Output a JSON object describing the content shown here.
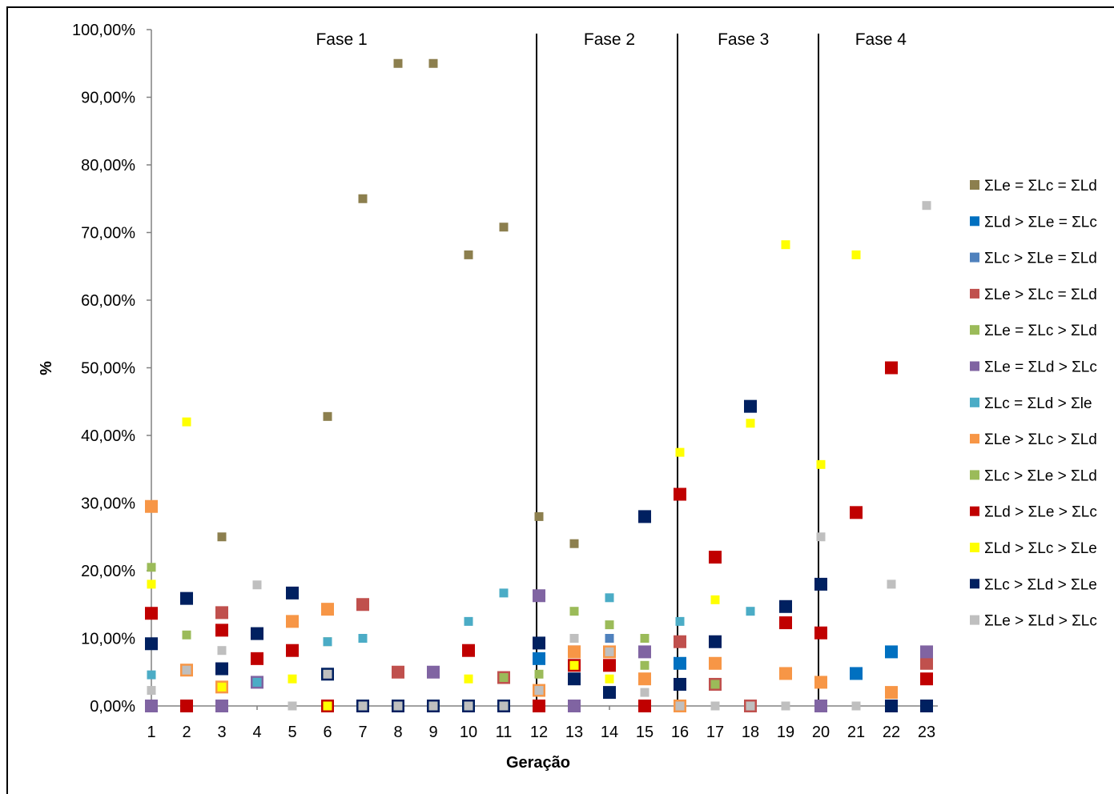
{
  "chart_data": {
    "type": "scatter",
    "xlabel": "Geração",
    "ylabel": "%",
    "ylim": [
      0,
      100
    ],
    "yticks": [
      "0,00%",
      "10,00%",
      "20,00%",
      "30,00%",
      "40,00%",
      "50,00%",
      "60,00%",
      "70,00%",
      "80,00%",
      "90,00%",
      "100,00%"
    ],
    "x": [
      1,
      2,
      3,
      4,
      5,
      6,
      7,
      8,
      9,
      10,
      11,
      12,
      13,
      14,
      15,
      16,
      17,
      18,
      19,
      20,
      21,
      22,
      23
    ],
    "grid": false,
    "legend_position": "right",
    "phases": [
      {
        "label": "Fase 1",
        "center": 6.4
      },
      {
        "label": "Fase 2",
        "center": 14.0
      },
      {
        "label": "Fase 3",
        "center": 17.8
      },
      {
        "label": "Fase 4",
        "center": 21.7
      }
    ],
    "phase_boundaries": [
      12,
      16,
      20
    ],
    "series": [
      {
        "name": "ΣLe = ΣLc = ΣLd",
        "color": "#8c7f4e",
        "size": "small",
        "values": [
          null,
          null,
          25,
          null,
          null,
          42.8,
          75,
          95,
          95,
          66.7,
          70.8,
          28,
          24,
          null,
          null,
          null,
          null,
          null,
          null,
          null,
          null,
          null,
          null
        ]
      },
      {
        "name": "ΣLd > ΣLe = ΣLc",
        "color": "#0070c0",
        "size": "large",
        "values": [
          null,
          null,
          null,
          null,
          null,
          null,
          null,
          null,
          null,
          null,
          null,
          7,
          null,
          null,
          null,
          6.3,
          null,
          null,
          null,
          null,
          4.8,
          8,
          null
        ]
      },
      {
        "name": "ΣLc > ΣLe = ΣLd",
        "color": "#4f81bd",
        "size": "small",
        "values": [
          null,
          null,
          null,
          null,
          null,
          null,
          null,
          null,
          null,
          null,
          null,
          null,
          null,
          10,
          null,
          null,
          null,
          null,
          null,
          null,
          null,
          null,
          null
        ]
      },
      {
        "name": "ΣLe > ΣLc = ΣLd",
        "color": "#c0504d",
        "size": "large",
        "values": [
          null,
          null,
          13.8,
          null,
          null,
          null,
          15,
          5,
          null,
          null,
          4.2,
          null,
          8,
          null,
          null,
          9.5,
          3.2,
          0,
          null,
          null,
          null,
          null,
          6.3
        ]
      },
      {
        "name": "ΣLe = ΣLc > ΣLd",
        "color": "#9bbb59",
        "size": "small",
        "values": [
          20.5,
          10.5,
          null,
          null,
          null,
          9.5,
          null,
          null,
          null,
          null,
          4.2,
          4.7,
          14,
          12,
          10,
          null,
          3.2,
          null,
          null,
          3.5,
          null,
          null,
          null
        ]
      },
      {
        "name": "ΣLe = ΣLd > ΣLc",
        "color": "#8064a2",
        "size": "large",
        "values": [
          0,
          null,
          0,
          3.5,
          null,
          null,
          null,
          null,
          5,
          null,
          null,
          16.3,
          0,
          null,
          8,
          null,
          null,
          null,
          null,
          0,
          null,
          null,
          8
        ]
      },
      {
        "name": "ΣLc = ΣLd > Σle",
        "color": "#4bacc6",
        "size": "small",
        "values": [
          4.6,
          null,
          null,
          3.5,
          null,
          9.5,
          10,
          null,
          null,
          12.5,
          16.7,
          null,
          null,
          16,
          null,
          12.5,
          null,
          14,
          null,
          null,
          null,
          null,
          null
        ]
      },
      {
        "name": "ΣLe > ΣLc > ΣLd",
        "color": "#f79646",
        "size": "large",
        "values": [
          29.5,
          5.3,
          2.8,
          null,
          12.5,
          14.3,
          null,
          null,
          null,
          null,
          null,
          2.3,
          8,
          8,
          4,
          0,
          6.3,
          null,
          4.8,
          3.5,
          null,
          2,
          null
        ]
      },
      {
        "name": "ΣLc > ΣLe > ΣLd",
        "color": "#9bbb59",
        "size": "small",
        "values": [
          null,
          null,
          null,
          null,
          null,
          null,
          null,
          null,
          null,
          null,
          null,
          null,
          null,
          null,
          6,
          null,
          null,
          null,
          null,
          null,
          null,
          null,
          null
        ]
      },
      {
        "name": "ΣLd > ΣLe > ΣLc",
        "color": "#c00000",
        "size": "large",
        "values": [
          13.7,
          0,
          11.2,
          7,
          8.2,
          0,
          null,
          null,
          null,
          8.2,
          null,
          0,
          6,
          6,
          0,
          31.3,
          22,
          null,
          12.3,
          10.8,
          28.6,
          50,
          4
        ]
      },
      {
        "name": "ΣLd > ΣLc > ΣLe",
        "color": "#ffff00",
        "size": "small",
        "values": [
          18,
          42,
          2.8,
          null,
          4,
          0,
          null,
          null,
          null,
          4,
          null,
          null,
          6,
          4,
          null,
          37.5,
          15.7,
          41.8,
          68.2,
          35.7,
          66.7,
          null,
          null
        ]
      },
      {
        "name": "ΣLc > ΣLd > ΣLe",
        "color": "#002060",
        "size": "large",
        "values": [
          9.2,
          15.9,
          5.5,
          10.7,
          16.7,
          4.7,
          0,
          0,
          0,
          0,
          0,
          9.3,
          4,
          2,
          28,
          3.2,
          9.5,
          44.3,
          14.7,
          18,
          null,
          0,
          0
        ]
      },
      {
        "name": "ΣLe > ΣLd > ΣLc",
        "color": "#bfbfbf",
        "size": "small",
        "values": [
          2.3,
          5.3,
          8.2,
          17.9,
          0,
          4.7,
          0,
          0,
          0,
          0,
          0,
          2.3,
          10,
          8,
          2,
          0,
          0,
          0,
          0,
          25,
          0,
          18,
          74
        ]
      }
    ]
  }
}
